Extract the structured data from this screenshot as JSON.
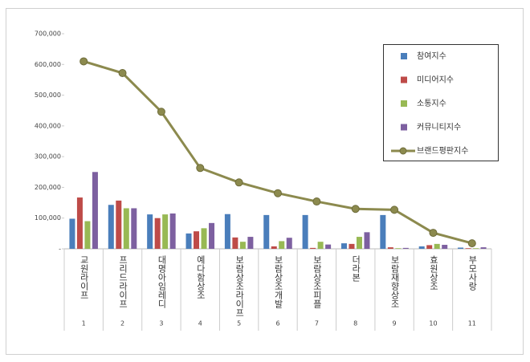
{
  "chart_data": {
    "type": "bar",
    "categories": [
      "교원라이프",
      "프리드라이프",
      "대명아임레디",
      "예다함상조",
      "보람상조라이프",
      "보람상조개발",
      "보람상조피플",
      "더라본",
      "보람재향상조",
      "효원상조",
      "부모사랑"
    ],
    "category_numbers": [
      "1",
      "2",
      "3",
      "4",
      "5",
      "6",
      "7",
      "8",
      "9",
      "10",
      "11"
    ],
    "series": [
      {
        "name": "참여지수",
        "color": "#4a7ebb",
        "values": [
          98000,
          143000,
          112000,
          50000,
          113000,
          110000,
          110000,
          18000,
          110000,
          8000,
          4000
        ]
      },
      {
        "name": "미디어지수",
        "color": "#be4b48",
        "values": [
          167000,
          157000,
          100000,
          57000,
          37000,
          8000,
          3000,
          16000,
          5000,
          12000,
          2000
        ]
      },
      {
        "name": "소통지수",
        "color": "#98b954",
        "values": [
          90000,
          132000,
          112000,
          67000,
          23000,
          25000,
          23000,
          39000,
          2000,
          16000,
          2000
        ]
      },
      {
        "name": "커뮤니티지수",
        "color": "#7d60a0",
        "values": [
          250000,
          132000,
          115000,
          84000,
          39000,
          36000,
          14000,
          54000,
          3000,
          13000,
          5000
        ]
      },
      {
        "name": "브랜드평판지수",
        "color": "#8c8a4e",
        "type": "line",
        "values": [
          610000,
          572000,
          446000,
          263000,
          216000,
          181000,
          154000,
          130000,
          127000,
          52000,
          18000
        ]
      }
    ],
    "ylim": [
      0,
      700000
    ],
    "yticks": [
      {
        "value": 0,
        "label": "-"
      },
      {
        "value": 100000,
        "label": "100,000"
      },
      {
        "value": 200000,
        "label": "200,000"
      },
      {
        "value": 300000,
        "label": "300,000"
      },
      {
        "value": 400000,
        "label": "400,000"
      },
      {
        "value": 500000,
        "label": "500,000"
      },
      {
        "value": 600000,
        "label": "600,000"
      },
      {
        "value": 700000,
        "label": "700,000"
      }
    ],
    "legend": "upper right"
  }
}
